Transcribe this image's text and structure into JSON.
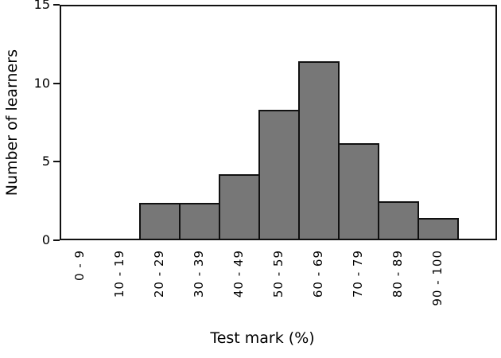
{
  "chart_data": {
    "type": "bar",
    "chart_kind": "histogram",
    "title": "",
    "xlabel": "Test mark (%)",
    "ylabel": "Number of learners",
    "categories": [
      "0 - 9",
      "10 - 19",
      "20 - 29",
      "30 - 39",
      "40 - 49",
      "50 - 59",
      "60 - 69",
      "70 - 79",
      "80 - 89",
      "90 - 100"
    ],
    "values": [
      0,
      0,
      2.4,
      2.4,
      4.2,
      8.3,
      11.4,
      6.2,
      2.5,
      1.4
    ],
    "ylim": [
      0,
      15
    ],
    "yticks": [
      0,
      5,
      10,
      15
    ],
    "grid": false,
    "legend": null,
    "colors": {
      "bar_fill": "#777777",
      "bar_edge": "#111111",
      "axis": "#111111",
      "text": "#000000",
      "background": "#ffffff"
    }
  }
}
